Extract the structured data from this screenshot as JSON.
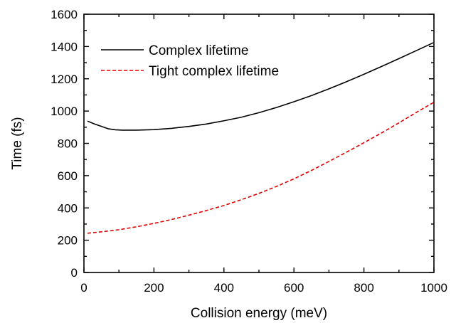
{
  "chart_data": {
    "type": "line",
    "title": "",
    "xlabel": "Collision energy (meV)",
    "ylabel": "Time (fs)",
    "xlim": [
      0,
      1000
    ],
    "ylim": [
      0,
      1600
    ],
    "x_ticks": [
      0,
      200,
      400,
      600,
      800,
      1000
    ],
    "y_ticks": [
      0,
      200,
      400,
      600,
      800,
      1000,
      1200,
      1400,
      1600
    ],
    "grid": false,
    "legend_position": "top-left",
    "series": [
      {
        "name": "Complex lifetime",
        "color": "#000000",
        "line_style": "solid",
        "x": [
          10,
          30,
          50,
          70,
          90,
          110,
          130,
          150,
          200,
          250,
          300,
          350,
          400,
          450,
          500,
          550,
          600,
          650,
          700,
          750,
          800,
          850,
          900,
          950,
          1000
        ],
        "y": [
          938,
          920,
          905,
          890,
          884,
          882,
          882,
          882,
          885,
          893,
          905,
          920,
          940,
          962,
          990,
          1022,
          1058,
          1096,
          1138,
          1182,
          1228,
          1276,
          1325,
          1375,
          1425
        ]
      },
      {
        "name": "Tight complex lifetime",
        "color": "#e00000",
        "line_style": "dashed",
        "x": [
          10,
          50,
          100,
          150,
          200,
          250,
          300,
          350,
          400,
          450,
          500,
          550,
          600,
          650,
          700,
          750,
          800,
          850,
          900,
          950,
          1000
        ],
        "y": [
          243,
          252,
          265,
          283,
          304,
          328,
          355,
          384,
          415,
          451,
          490,
          533,
          580,
          632,
          688,
          745,
          804,
          864,
          927,
          992,
          1055
        ]
      }
    ]
  }
}
